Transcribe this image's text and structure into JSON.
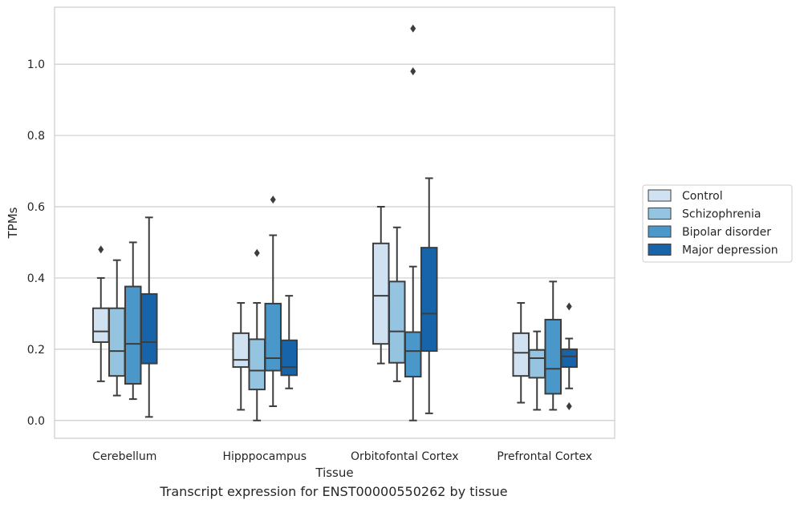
{
  "chart_data": {
    "type": "box",
    "xlabel": "Tissue",
    "ylabel": "TPMs",
    "ylim": [
      -0.05,
      1.16
    ],
    "yticks": [
      "0.0",
      "0.2",
      "0.4",
      "0.6",
      "0.8",
      "1.0"
    ],
    "grid": true,
    "legend_position": "right",
    "categories": [
      "Cerebellum",
      "Hipppocampus",
      "Orbitofontal Cortex",
      "Prefrontal Cortex"
    ],
    "series": [
      {
        "name": "Control",
        "color": "#d0e1f2",
        "boxes": [
          {
            "whisker_low": 0.11,
            "q1": 0.22,
            "median": 0.25,
            "q3": 0.315,
            "whisker_high": 0.4,
            "outliers": [
              0.48
            ]
          },
          {
            "whisker_low": 0.03,
            "q1": 0.15,
            "median": 0.17,
            "q3": 0.245,
            "whisker_high": 0.33,
            "outliers": []
          },
          {
            "whisker_low": 0.16,
            "q1": 0.215,
            "median": 0.35,
            "q3": 0.497,
            "whisker_high": 0.6,
            "outliers": []
          },
          {
            "whisker_low": 0.05,
            "q1": 0.125,
            "median": 0.19,
            "q3": 0.245,
            "whisker_high": 0.33,
            "outliers": []
          }
        ]
      },
      {
        "name": "Schizophrenia",
        "color": "#94c4df",
        "boxes": [
          {
            "whisker_low": 0.07,
            "q1": 0.125,
            "median": 0.195,
            "q3": 0.315,
            "whisker_high": 0.45,
            "outliers": []
          },
          {
            "whisker_low": 0.0,
            "q1": 0.087,
            "median": 0.14,
            "q3": 0.228,
            "whisker_high": 0.33,
            "outliers": [
              0.47
            ]
          },
          {
            "whisker_low": 0.11,
            "q1": 0.162,
            "median": 0.25,
            "q3": 0.39,
            "whisker_high": 0.542,
            "outliers": []
          },
          {
            "whisker_low": 0.03,
            "q1": 0.12,
            "median": 0.175,
            "q3": 0.198,
            "whisker_high": 0.25,
            "outliers": []
          }
        ]
      },
      {
        "name": "Bipolar disorder",
        "color": "#4a98c9",
        "boxes": [
          {
            "whisker_low": 0.06,
            "q1": 0.103,
            "median": 0.215,
            "q3": 0.376,
            "whisker_high": 0.5,
            "outliers": []
          },
          {
            "whisker_low": 0.04,
            "q1": 0.14,
            "median": 0.175,
            "q3": 0.328,
            "whisker_high": 0.52,
            "outliers": [
              0.62
            ]
          },
          {
            "whisker_low": 0.0,
            "q1": 0.123,
            "median": 0.195,
            "q3": 0.248,
            "whisker_high": 0.432,
            "outliers": [
              0.98,
              1.1
            ]
          },
          {
            "whisker_low": 0.03,
            "q1": 0.075,
            "median": 0.145,
            "q3": 0.283,
            "whisker_high": 0.39,
            "outliers": []
          }
        ]
      },
      {
        "name": "Major depression",
        "color": "#1764ab",
        "boxes": [
          {
            "whisker_low": 0.01,
            "q1": 0.16,
            "median": 0.22,
            "q3": 0.355,
            "whisker_high": 0.57,
            "outliers": []
          },
          {
            "whisker_low": 0.09,
            "q1": 0.127,
            "median": 0.15,
            "q3": 0.225,
            "whisker_high": 0.35,
            "outliers": []
          },
          {
            "whisker_low": 0.02,
            "q1": 0.195,
            "median": 0.3,
            "q3": 0.485,
            "whisker_high": 0.68,
            "outliers": []
          },
          {
            "whisker_low": 0.09,
            "q1": 0.15,
            "median": 0.18,
            "q3": 0.2,
            "whisker_high": 0.23,
            "outliers": [
              0.32,
              0.04
            ]
          }
        ]
      }
    ]
  },
  "caption": "Transcript expression for ENST00000550262 by tissue",
  "colors": {
    "grid": "#cccccc",
    "frame": "#cccccc",
    "box_edge": "#3d3d3d",
    "text": "#262626"
  }
}
